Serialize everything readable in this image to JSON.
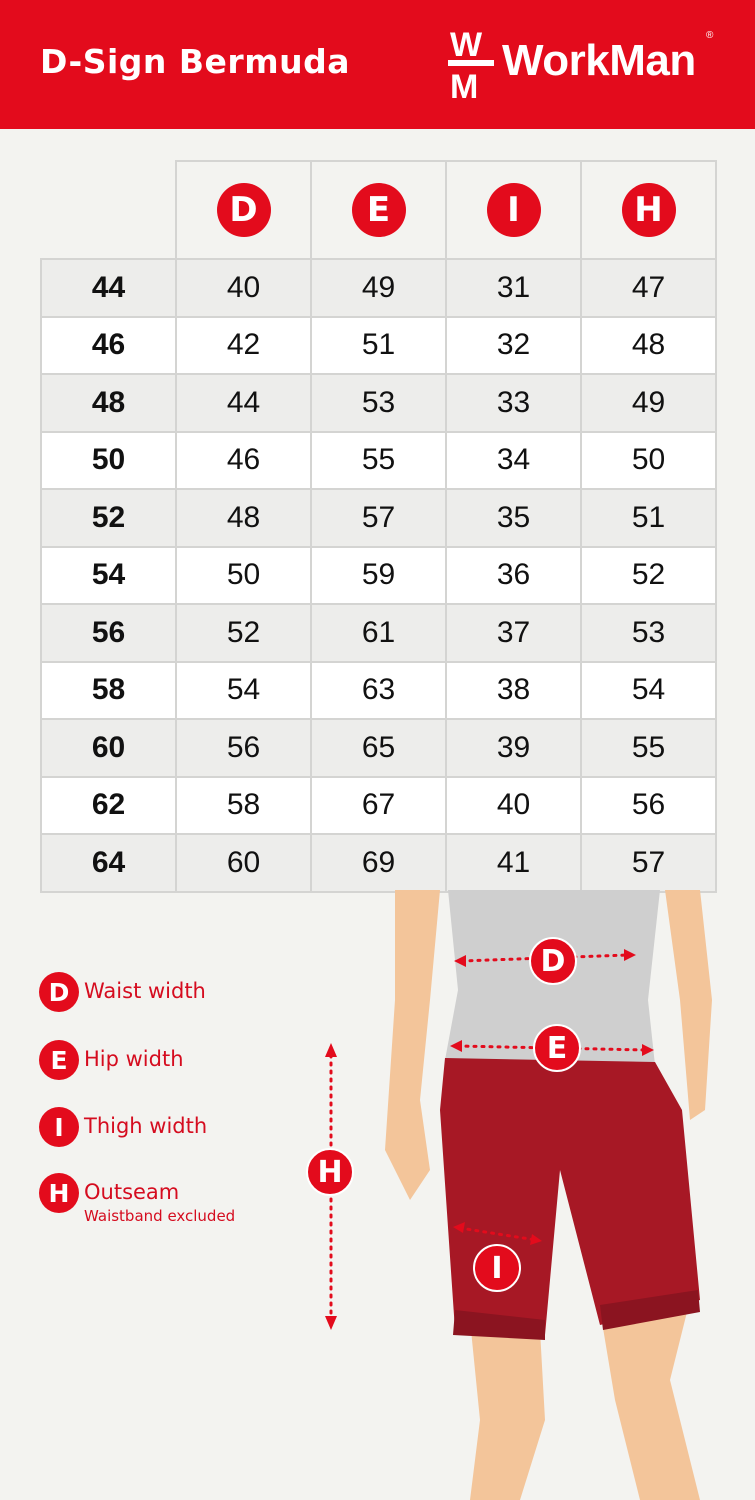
{
  "header": {
    "title": "D-Sign Bermuda",
    "brand": "WorkMan",
    "brand_mark_top": "W",
    "brand_mark_bottom": "M",
    "registered": "®"
  },
  "colors": {
    "brand_red": "#e30b1c",
    "background": "#f3f3f0"
  },
  "table": {
    "columns": [
      "D",
      "E",
      "I",
      "H"
    ],
    "rows": [
      {
        "size": "44",
        "values": [
          "40",
          "49",
          "31",
          "47"
        ]
      },
      {
        "size": "46",
        "values": [
          "42",
          "51",
          "32",
          "48"
        ]
      },
      {
        "size": "48",
        "values": [
          "44",
          "53",
          "33",
          "49"
        ]
      },
      {
        "size": "50",
        "values": [
          "46",
          "55",
          "34",
          "50"
        ]
      },
      {
        "size": "52",
        "values": [
          "48",
          "57",
          "35",
          "51"
        ]
      },
      {
        "size": "54",
        "values": [
          "50",
          "59",
          "36",
          "52"
        ]
      },
      {
        "size": "56",
        "values": [
          "52",
          "61",
          "37",
          "53"
        ]
      },
      {
        "size": "58",
        "values": [
          "54",
          "63",
          "38",
          "54"
        ]
      },
      {
        "size": "60",
        "values": [
          "56",
          "65",
          "39",
          "55"
        ]
      },
      {
        "size": "62",
        "values": [
          "58",
          "67",
          "40",
          "56"
        ]
      },
      {
        "size": "64",
        "values": [
          "60",
          "69",
          "41",
          "57"
        ]
      }
    ]
  },
  "legend": [
    {
      "letter": "D",
      "label": "Waist width"
    },
    {
      "letter": "E",
      "label": "Hip width"
    },
    {
      "letter": "I",
      "label": "Thigh width"
    },
    {
      "letter": "H",
      "label": "Outseam",
      "note": "Waistband excluded"
    }
  ],
  "figure": {
    "markers": [
      "D",
      "E",
      "I",
      "H"
    ]
  }
}
